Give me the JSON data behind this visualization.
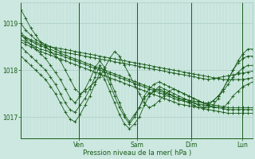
{
  "xlabel": "Pression niveau de la mer( hPa )",
  "ylim": [
    1016.55,
    1019.45
  ],
  "yticks": [
    1017,
    1018,
    1019
  ],
  "background_color": "#cce8e0",
  "grid_color_v": "#b8d8d0",
  "grid_color_h": "#aaccc4",
  "line_color": "#1a5c1a",
  "day_labels": [
    "Ven",
    "Sam",
    "Dim",
    "Lun"
  ],
  "day_positions": [
    0.25,
    0.5,
    0.735,
    0.955
  ],
  "n_points": 48,
  "series": [
    [
      1019.0,
      1018.85,
      1018.75,
      1018.65,
      1018.6,
      1018.55,
      1018.5,
      1018.45,
      1018.4,
      1018.38,
      1018.36,
      1018.34,
      1018.32,
      1018.3,
      1018.28,
      1018.26,
      1018.24,
      1018.22,
      1018.2,
      1018.18,
      1018.16,
      1018.14,
      1018.12,
      1018.1,
      1018.08,
      1018.06,
      1018.04,
      1018.02,
      1018.0,
      1017.98,
      1017.96,
      1017.94,
      1017.92,
      1017.9,
      1017.88,
      1017.86,
      1017.84,
      1017.82,
      1017.8,
      1017.82,
      1017.84,
      1017.86,
      1017.88,
      1017.9,
      1017.92,
      1017.94,
      1017.96,
      1017.98
    ],
    [
      1018.8,
      1018.7,
      1018.65,
      1018.6,
      1018.55,
      1018.52,
      1018.5,
      1018.48,
      1018.46,
      1018.44,
      1018.42,
      1018.4,
      1018.38,
      1018.36,
      1018.34,
      1018.32,
      1018.3,
      1018.28,
      1018.26,
      1018.24,
      1018.22,
      1018.2,
      1018.18,
      1018.16,
      1018.14,
      1018.12,
      1018.1,
      1018.08,
      1018.06,
      1018.04,
      1018.02,
      1018.0,
      1017.98,
      1017.96,
      1017.94,
      1017.92,
      1017.9,
      1017.88,
      1017.86,
      1017.84,
      1017.82,
      1017.8,
      1017.8,
      1017.8,
      1017.8,
      1017.8,
      1017.82,
      1017.84
    ],
    [
      1018.75,
      1018.68,
      1018.62,
      1018.56,
      1018.52,
      1018.48,
      1018.44,
      1018.4,
      1018.36,
      1018.32,
      1018.28,
      1018.24,
      1018.2,
      1018.16,
      1018.12,
      1018.08,
      1018.04,
      1018.0,
      1017.96,
      1017.92,
      1017.88,
      1017.84,
      1017.8,
      1017.76,
      1017.72,
      1017.68,
      1017.64,
      1017.6,
      1017.56,
      1017.52,
      1017.48,
      1017.44,
      1017.4,
      1017.38,
      1017.36,
      1017.34,
      1017.32,
      1017.3,
      1017.28,
      1017.26,
      1017.24,
      1017.22,
      1017.2,
      1017.2,
      1017.2,
      1017.2,
      1017.2,
      1017.2
    ],
    [
      1018.65,
      1018.6,
      1018.55,
      1018.5,
      1018.45,
      1018.42,
      1018.38,
      1018.35,
      1018.32,
      1018.28,
      1018.24,
      1018.2,
      1018.16,
      1018.12,
      1018.08,
      1018.04,
      1018.0,
      1017.96,
      1017.92,
      1017.88,
      1017.84,
      1017.8,
      1017.76,
      1017.72,
      1017.68,
      1017.64,
      1017.6,
      1017.56,
      1017.52,
      1017.48,
      1017.44,
      1017.4,
      1017.36,
      1017.34,
      1017.32,
      1017.3,
      1017.28,
      1017.26,
      1017.24,
      1017.22,
      1017.2,
      1017.18,
      1017.16,
      1017.16,
      1017.16,
      1017.16,
      1017.16,
      1017.16
    ],
    [
      1018.6,
      1018.55,
      1018.5,
      1018.45,
      1018.4,
      1018.36,
      1018.32,
      1018.28,
      1018.24,
      1018.2,
      1018.16,
      1018.12,
      1018.08,
      1018.04,
      1018.0,
      1017.96,
      1017.92,
      1017.88,
      1017.84,
      1017.8,
      1017.76,
      1017.72,
      1017.68,
      1017.64,
      1017.6,
      1017.56,
      1017.52,
      1017.48,
      1017.44,
      1017.4,
      1017.36,
      1017.32,
      1017.28,
      1017.26,
      1017.24,
      1017.22,
      1017.2,
      1017.18,
      1017.16,
      1017.14,
      1017.12,
      1017.1,
      1017.08,
      1017.08,
      1017.08,
      1017.08,
      1017.08,
      1017.08
    ],
    [
      1019.3,
      1019.1,
      1018.9,
      1018.75,
      1018.6,
      1018.5,
      1018.4,
      1018.3,
      1018.2,
      1018.0,
      1017.8,
      1017.6,
      1017.5,
      1017.55,
      1017.65,
      1017.75,
      1017.85,
      1018.05,
      1018.25,
      1018.4,
      1018.3,
      1018.1,
      1017.9,
      1017.7,
      1017.5,
      1017.3,
      1017.2,
      1017.25,
      1017.35,
      1017.45,
      1017.55,
      1017.6,
      1017.55,
      1017.5,
      1017.45,
      1017.4,
      1017.35,
      1017.3,
      1017.25,
      1017.2,
      1017.2,
      1017.2,
      1017.3,
      1017.45,
      1017.55,
      1017.65,
      1017.7,
      1017.75
    ],
    [
      1018.75,
      1018.65,
      1018.55,
      1018.45,
      1018.35,
      1018.25,
      1018.1,
      1017.95,
      1017.8,
      1017.6,
      1017.4,
      1017.3,
      1017.45,
      1017.6,
      1017.8,
      1018.05,
      1018.2,
      1018.05,
      1017.8,
      1017.55,
      1017.3,
      1017.05,
      1016.9,
      1017.05,
      1017.2,
      1017.4,
      1017.5,
      1017.55,
      1017.6,
      1017.55,
      1017.5,
      1017.45,
      1017.4,
      1017.35,
      1017.3,
      1017.25,
      1017.2,
      1017.2,
      1017.25,
      1017.35,
      1017.45,
      1017.55,
      1017.7,
      1017.85,
      1017.95,
      1018.05,
      1018.1,
      1018.1
    ],
    [
      1018.5,
      1018.4,
      1018.3,
      1018.2,
      1018.1,
      1018.0,
      1017.85,
      1017.7,
      1017.5,
      1017.3,
      1017.15,
      1017.1,
      1017.25,
      1017.4,
      1017.6,
      1017.85,
      1018.1,
      1017.95,
      1017.7,
      1017.45,
      1017.2,
      1017.0,
      1016.85,
      1017.0,
      1017.2,
      1017.45,
      1017.6,
      1017.7,
      1017.75,
      1017.7,
      1017.65,
      1017.6,
      1017.55,
      1017.5,
      1017.45,
      1017.4,
      1017.35,
      1017.3,
      1017.3,
      1017.35,
      1017.45,
      1017.6,
      1017.8,
      1018.0,
      1018.15,
      1018.25,
      1018.3,
      1018.3
    ],
    [
      1018.3,
      1018.2,
      1018.1,
      1018.0,
      1017.9,
      1017.8,
      1017.65,
      1017.5,
      1017.3,
      1017.1,
      1016.95,
      1016.9,
      1017.05,
      1017.25,
      1017.45,
      1017.7,
      1017.95,
      1017.8,
      1017.55,
      1017.3,
      1017.05,
      1016.85,
      1016.75,
      1016.85,
      1017.0,
      1017.25,
      1017.45,
      1017.55,
      1017.65,
      1017.6,
      1017.55,
      1017.5,
      1017.45,
      1017.4,
      1017.35,
      1017.3,
      1017.25,
      1017.2,
      1017.2,
      1017.25,
      1017.4,
      1017.6,
      1017.8,
      1018.0,
      1018.2,
      1018.35,
      1018.45,
      1018.45
    ]
  ]
}
